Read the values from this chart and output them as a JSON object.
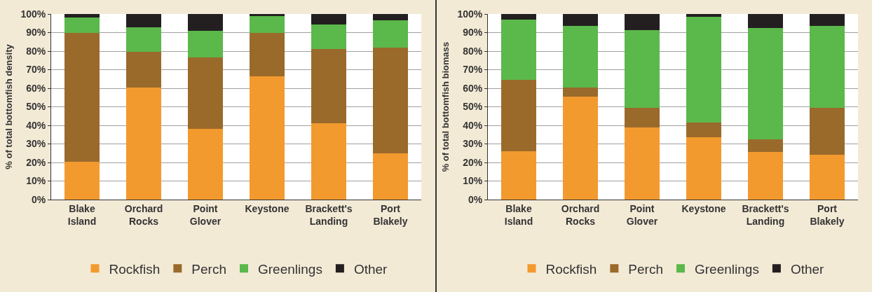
{
  "chart_data": [
    {
      "type": "bar",
      "stacked": true,
      "ylabel": "% of total bottomfish density",
      "categories": [
        "Blake Island",
        "Orchard Rocks",
        "Point Glover",
        "Keystone",
        "Brackett's Landing",
        "Port Blakely"
      ],
      "series": [
        {
          "name": "Rockfish",
          "color": "#f39a2e",
          "values": [
            20.5,
            60.5,
            38,
            66.5,
            41,
            25
          ]
        },
        {
          "name": "Perch",
          "color": "#9a6a2b",
          "values": [
            69.5,
            19,
            38.5,
            23.5,
            40,
            57
          ]
        },
        {
          "name": "Greenlings",
          "color": "#5bb84a",
          "values": [
            8,
            13.5,
            14.5,
            9,
            13.5,
            14.5
          ]
        },
        {
          "name": "Other",
          "color": "#231f20",
          "values": [
            2,
            7,
            9,
            1,
            5.5,
            3.5
          ]
        }
      ],
      "ylim": [
        0,
        100
      ],
      "yticks": [
        {
          "value": 0,
          "label": "0%"
        },
        {
          "value": 10,
          "label": "10%"
        },
        {
          "value": 20,
          "label": "20%"
        },
        {
          "value": 30,
          "label": "30%"
        },
        {
          "value": 40,
          "label": "40%"
        },
        {
          "value": 50,
          "label": "50%"
        },
        {
          "value": 60,
          "label": "60%"
        },
        {
          "value": 70,
          "label": "70%"
        },
        {
          "value": 80,
          "label": "80%"
        },
        {
          "value": 90,
          "label": "90%"
        },
        {
          "value": 100,
          "label": "100%"
        }
      ],
      "grid": "y",
      "legend": "bottom"
    },
    {
      "type": "bar",
      "stacked": true,
      "ylabel": "% of total bottomfish biomass",
      "categories": [
        "Blake Island",
        "Orchard Rocks",
        "Point Glover",
        "Keystone",
        "Brackett's Landing",
        "Port Blakely"
      ],
      "series": [
        {
          "name": "Rockfish",
          "color": "#f39a2e",
          "values": [
            26,
            55.5,
            39,
            33.5,
            25.5,
            24
          ]
        },
        {
          "name": "Perch",
          "color": "#9a6a2b",
          "values": [
            38.5,
            5,
            10.5,
            8,
            7,
            25.5
          ]
        },
        {
          "name": "Greenlings",
          "color": "#5bb84a",
          "values": [
            32.5,
            33,
            42,
            57,
            60,
            44
          ]
        },
        {
          "name": "Other",
          "color": "#231f20",
          "values": [
            3,
            6.5,
            8.5,
            1.5,
            7.5,
            6.5
          ]
        }
      ],
      "ylim": [
        0,
        100
      ],
      "yticks": [
        {
          "value": 0,
          "label": "0%"
        },
        {
          "value": 10,
          "label": "10%"
        },
        {
          "value": 20,
          "label": "20%"
        },
        {
          "value": 30,
          "label": "30%"
        },
        {
          "value": 40,
          "label": "40%"
        },
        {
          "value": 50,
          "label": "50%"
        },
        {
          "value": 60,
          "label": "60%"
        },
        {
          "value": 70,
          "label": "70%"
        },
        {
          "value": 80,
          "label": "80%"
        },
        {
          "value": 90,
          "label": "90%"
        },
        {
          "value": 100,
          "label": "100%"
        }
      ],
      "grid": "y",
      "legend": "bottom"
    }
  ]
}
